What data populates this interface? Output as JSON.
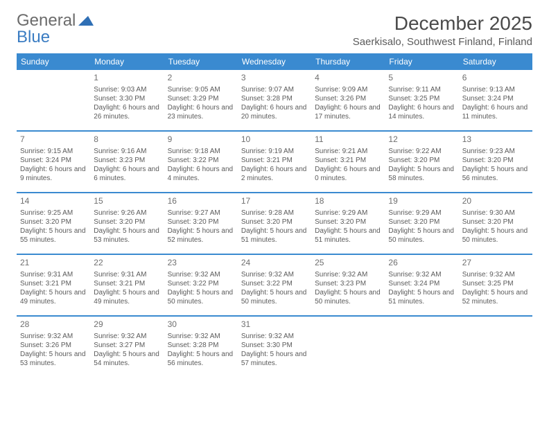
{
  "logo": {
    "word1": "General",
    "word2": "Blue"
  },
  "title": "December 2025",
  "location": "Saerkisalo, Southwest Finland, Finland",
  "colors": {
    "header_bg": "#3a8ad0",
    "header_text": "#ffffff",
    "body_text": "#5a5a5a",
    "daynum": "#6f6f6f",
    "sep": "#3a8ad0",
    "logo_gray": "#6b6b6b",
    "logo_blue": "#3a7cc2",
    "page_bg": "#ffffff"
  },
  "fonts": {
    "title_pt": 28,
    "location_pt": 15,
    "th_pt": 12,
    "daynum_pt": 12,
    "cell_pt": 10
  },
  "weekdays": [
    "Sunday",
    "Monday",
    "Tuesday",
    "Wednesday",
    "Thursday",
    "Friday",
    "Saturday"
  ],
  "weeks": [
    [
      {
        "num": "",
        "sunrise": "",
        "sunset": "",
        "daylight": ""
      },
      {
        "num": "1",
        "sunrise": "Sunrise: 9:03 AM",
        "sunset": "Sunset: 3:30 PM",
        "daylight": "Daylight: 6 hours and 26 minutes."
      },
      {
        "num": "2",
        "sunrise": "Sunrise: 9:05 AM",
        "sunset": "Sunset: 3:29 PM",
        "daylight": "Daylight: 6 hours and 23 minutes."
      },
      {
        "num": "3",
        "sunrise": "Sunrise: 9:07 AM",
        "sunset": "Sunset: 3:28 PM",
        "daylight": "Daylight: 6 hours and 20 minutes."
      },
      {
        "num": "4",
        "sunrise": "Sunrise: 9:09 AM",
        "sunset": "Sunset: 3:26 PM",
        "daylight": "Daylight: 6 hours and 17 minutes."
      },
      {
        "num": "5",
        "sunrise": "Sunrise: 9:11 AM",
        "sunset": "Sunset: 3:25 PM",
        "daylight": "Daylight: 6 hours and 14 minutes."
      },
      {
        "num": "6",
        "sunrise": "Sunrise: 9:13 AM",
        "sunset": "Sunset: 3:24 PM",
        "daylight": "Daylight: 6 hours and 11 minutes."
      }
    ],
    [
      {
        "num": "7",
        "sunrise": "Sunrise: 9:15 AM",
        "sunset": "Sunset: 3:24 PM",
        "daylight": "Daylight: 6 hours and 9 minutes."
      },
      {
        "num": "8",
        "sunrise": "Sunrise: 9:16 AM",
        "sunset": "Sunset: 3:23 PM",
        "daylight": "Daylight: 6 hours and 6 minutes."
      },
      {
        "num": "9",
        "sunrise": "Sunrise: 9:18 AM",
        "sunset": "Sunset: 3:22 PM",
        "daylight": "Daylight: 6 hours and 4 minutes."
      },
      {
        "num": "10",
        "sunrise": "Sunrise: 9:19 AM",
        "sunset": "Sunset: 3:21 PM",
        "daylight": "Daylight: 6 hours and 2 minutes."
      },
      {
        "num": "11",
        "sunrise": "Sunrise: 9:21 AM",
        "sunset": "Sunset: 3:21 PM",
        "daylight": "Daylight: 6 hours and 0 minutes."
      },
      {
        "num": "12",
        "sunrise": "Sunrise: 9:22 AM",
        "sunset": "Sunset: 3:20 PM",
        "daylight": "Daylight: 5 hours and 58 minutes."
      },
      {
        "num": "13",
        "sunrise": "Sunrise: 9:23 AM",
        "sunset": "Sunset: 3:20 PM",
        "daylight": "Daylight: 5 hours and 56 minutes."
      }
    ],
    [
      {
        "num": "14",
        "sunrise": "Sunrise: 9:25 AM",
        "sunset": "Sunset: 3:20 PM",
        "daylight": "Daylight: 5 hours and 55 minutes."
      },
      {
        "num": "15",
        "sunrise": "Sunrise: 9:26 AM",
        "sunset": "Sunset: 3:20 PM",
        "daylight": "Daylight: 5 hours and 53 minutes."
      },
      {
        "num": "16",
        "sunrise": "Sunrise: 9:27 AM",
        "sunset": "Sunset: 3:20 PM",
        "daylight": "Daylight: 5 hours and 52 minutes."
      },
      {
        "num": "17",
        "sunrise": "Sunrise: 9:28 AM",
        "sunset": "Sunset: 3:20 PM",
        "daylight": "Daylight: 5 hours and 51 minutes."
      },
      {
        "num": "18",
        "sunrise": "Sunrise: 9:29 AM",
        "sunset": "Sunset: 3:20 PM",
        "daylight": "Daylight: 5 hours and 51 minutes."
      },
      {
        "num": "19",
        "sunrise": "Sunrise: 9:29 AM",
        "sunset": "Sunset: 3:20 PM",
        "daylight": "Daylight: 5 hours and 50 minutes."
      },
      {
        "num": "20",
        "sunrise": "Sunrise: 9:30 AM",
        "sunset": "Sunset: 3:20 PM",
        "daylight": "Daylight: 5 hours and 50 minutes."
      }
    ],
    [
      {
        "num": "21",
        "sunrise": "Sunrise: 9:31 AM",
        "sunset": "Sunset: 3:21 PM",
        "daylight": "Daylight: 5 hours and 49 minutes."
      },
      {
        "num": "22",
        "sunrise": "Sunrise: 9:31 AM",
        "sunset": "Sunset: 3:21 PM",
        "daylight": "Daylight: 5 hours and 49 minutes."
      },
      {
        "num": "23",
        "sunrise": "Sunrise: 9:32 AM",
        "sunset": "Sunset: 3:22 PM",
        "daylight": "Daylight: 5 hours and 50 minutes."
      },
      {
        "num": "24",
        "sunrise": "Sunrise: 9:32 AM",
        "sunset": "Sunset: 3:22 PM",
        "daylight": "Daylight: 5 hours and 50 minutes."
      },
      {
        "num": "25",
        "sunrise": "Sunrise: 9:32 AM",
        "sunset": "Sunset: 3:23 PM",
        "daylight": "Daylight: 5 hours and 50 minutes."
      },
      {
        "num": "26",
        "sunrise": "Sunrise: 9:32 AM",
        "sunset": "Sunset: 3:24 PM",
        "daylight": "Daylight: 5 hours and 51 minutes."
      },
      {
        "num": "27",
        "sunrise": "Sunrise: 9:32 AM",
        "sunset": "Sunset: 3:25 PM",
        "daylight": "Daylight: 5 hours and 52 minutes."
      }
    ],
    [
      {
        "num": "28",
        "sunrise": "Sunrise: 9:32 AM",
        "sunset": "Sunset: 3:26 PM",
        "daylight": "Daylight: 5 hours and 53 minutes."
      },
      {
        "num": "29",
        "sunrise": "Sunrise: 9:32 AM",
        "sunset": "Sunset: 3:27 PM",
        "daylight": "Daylight: 5 hours and 54 minutes."
      },
      {
        "num": "30",
        "sunrise": "Sunrise: 9:32 AM",
        "sunset": "Sunset: 3:28 PM",
        "daylight": "Daylight: 5 hours and 56 minutes."
      },
      {
        "num": "31",
        "sunrise": "Sunrise: 9:32 AM",
        "sunset": "Sunset: 3:30 PM",
        "daylight": "Daylight: 5 hours and 57 minutes."
      },
      {
        "num": "",
        "sunrise": "",
        "sunset": "",
        "daylight": ""
      },
      {
        "num": "",
        "sunrise": "",
        "sunset": "",
        "daylight": ""
      },
      {
        "num": "",
        "sunrise": "",
        "sunset": "",
        "daylight": ""
      }
    ]
  ]
}
